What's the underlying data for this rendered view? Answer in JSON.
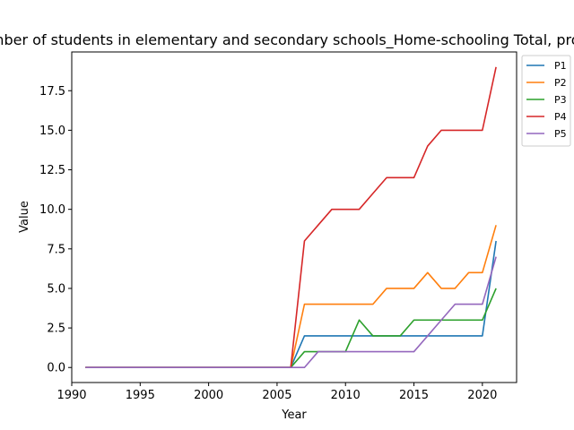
{
  "chart_data": {
    "type": "line",
    "title": "Number of students in elementary and secondary schools_Home-schooling Total, province",
    "xlabel": "Year",
    "ylabel": "Value",
    "xlim": [
      1990,
      2022.5
    ],
    "ylim": [
      -0.95,
      19.95
    ],
    "xticks": [
      1990,
      1995,
      2000,
      2005,
      2010,
      2015,
      2020
    ],
    "yticks": [
      0.0,
      2.5,
      5.0,
      7.5,
      10.0,
      12.5,
      15.0,
      17.5
    ],
    "ytick_labels": [
      "0.0",
      "2.5",
      "5.0",
      "7.5",
      "10.0",
      "12.5",
      "15.0",
      "17.5"
    ],
    "legend_position": "outside-top-right",
    "grid": false,
    "x": [
      1991,
      1992,
      1993,
      1994,
      1995,
      1996,
      1997,
      1998,
      1999,
      2000,
      2001,
      2002,
      2003,
      2004,
      2005,
      2006,
      2007,
      2008,
      2009,
      2010,
      2011,
      2012,
      2013,
      2014,
      2015,
      2016,
      2017,
      2018,
      2019,
      2020,
      2021
    ],
    "series": [
      {
        "name": "P1",
        "color": "#1f77b4",
        "values": [
          0,
          0,
          0,
          0,
          0,
          0,
          0,
          0,
          0,
          0,
          0,
          0,
          0,
          0,
          0,
          0,
          2,
          2,
          2,
          2,
          2,
          2,
          2,
          2,
          2,
          2,
          2,
          2,
          2,
          2,
          8
        ]
      },
      {
        "name": "P2",
        "color": "#ff7f0e",
        "values": [
          0,
          0,
          0,
          0,
          0,
          0,
          0,
          0,
          0,
          0,
          0,
          0,
          0,
          0,
          0,
          0,
          4,
          4,
          4,
          4,
          4,
          4,
          5,
          5,
          5,
          6,
          5,
          5,
          6,
          6,
          9
        ]
      },
      {
        "name": "P3",
        "color": "#2ca02c",
        "values": [
          0,
          0,
          0,
          0,
          0,
          0,
          0,
          0,
          0,
          0,
          0,
          0,
          0,
          0,
          0,
          0,
          1,
          1,
          1,
          1,
          3,
          2,
          2,
          2,
          3,
          3,
          3,
          3,
          3,
          3,
          5
        ]
      },
      {
        "name": "P4",
        "color": "#d62728",
        "values": [
          0,
          0,
          0,
          0,
          0,
          0,
          0,
          0,
          0,
          0,
          0,
          0,
          0,
          0,
          0,
          0,
          8,
          9,
          10,
          10,
          10,
          11,
          12,
          12,
          12,
          14,
          15,
          15,
          15,
          15,
          19
        ]
      },
      {
        "name": "P5",
        "color": "#9467bd",
        "values": [
          0,
          0,
          0,
          0,
          0,
          0,
          0,
          0,
          0,
          0,
          0,
          0,
          0,
          0,
          0,
          0,
          0,
          1,
          1,
          1,
          1,
          1,
          1,
          1,
          1,
          2,
          3,
          4,
          4,
          4,
          7
        ]
      }
    ]
  }
}
